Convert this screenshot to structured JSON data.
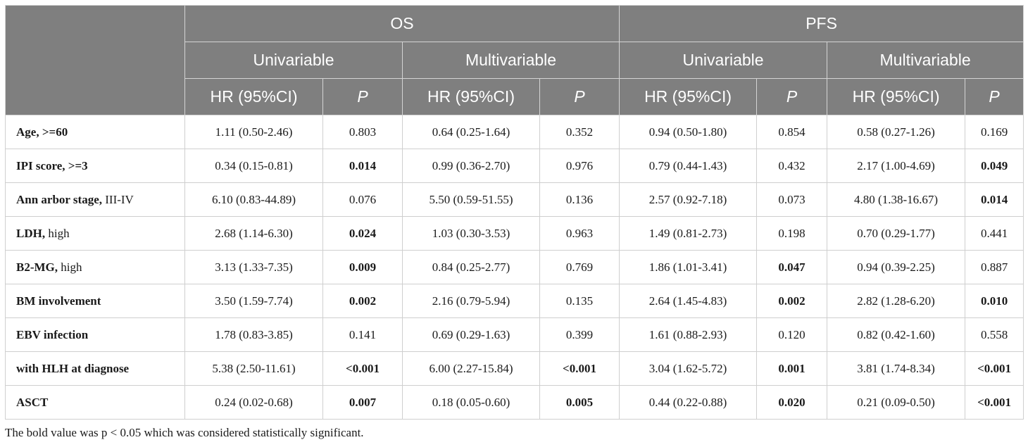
{
  "header": {
    "group_os": "OS",
    "group_pfs": "PFS",
    "univariable": "Univariable",
    "multivariable": "Multivariable",
    "hr_col": "HR (95%CI)",
    "p_col": "P"
  },
  "rows": [
    {
      "label_bold": "Age, >=60",
      "label_rest": "",
      "os_uni_hr": "1.11 (0.50-2.46)",
      "os_uni_p": "0.803",
      "os_multi_hr": "0.64 (0.25-1.64)",
      "os_multi_p": "0.352",
      "pfs_uni_hr": "0.94 (0.50-1.80)",
      "pfs_uni_p": "0.854",
      "pfs_multi_hr": "0.58 (0.27-1.26)",
      "pfs_multi_p": "0.169"
    },
    {
      "label_bold": "IPI score, >=3",
      "label_rest": "",
      "os_uni_hr": "0.34 (0.15-0.81)",
      "os_uni_p": "0.014",
      "os_multi_hr": "0.99 (0.36-2.70)",
      "os_multi_p": "0.976",
      "pfs_uni_hr": "0.79 (0.44-1.43)",
      "pfs_uni_p": "0.432",
      "pfs_multi_hr": "2.17 (1.00-4.69)",
      "pfs_multi_p": "0.049"
    },
    {
      "label_bold": "Ann arbor stage,",
      "label_rest": " III-IV",
      "os_uni_hr": "6.10 (0.83-44.89)",
      "os_uni_p": "0.076",
      "os_multi_hr": "5.50 (0.59-51.55)",
      "os_multi_p": "0.136",
      "pfs_uni_hr": "2.57 (0.92-7.18)",
      "pfs_uni_p": "0.073",
      "pfs_multi_hr": "4.80 (1.38-16.67)",
      "pfs_multi_p": "0.014"
    },
    {
      "label_bold": "LDH,",
      "label_rest": " high",
      "os_uni_hr": "2.68 (1.14-6.30)",
      "os_uni_p": "0.024",
      "os_multi_hr": "1.03 (0.30-3.53)",
      "os_multi_p": "0.963",
      "pfs_uni_hr": "1.49 (0.81-2.73)",
      "pfs_uni_p": "0.198",
      "pfs_multi_hr": "0.70 (0.29-1.77)",
      "pfs_multi_p": "0.441"
    },
    {
      "label_bold": "B2-MG,",
      "label_rest": " high",
      "os_uni_hr": "3.13 (1.33-7.35)",
      "os_uni_p": "0.009",
      "os_multi_hr": "0.84 (0.25-2.77)",
      "os_multi_p": "0.769",
      "pfs_uni_hr": "1.86 (1.01-3.41)",
      "pfs_uni_p": "0.047",
      "pfs_multi_hr": "0.94 (0.39-2.25)",
      "pfs_multi_p": "0.887"
    },
    {
      "label_bold": "BM involvement",
      "label_rest": "",
      "os_uni_hr": "3.50 (1.59-7.74)",
      "os_uni_p": "0.002",
      "os_multi_hr": "2.16 (0.79-5.94)",
      "os_multi_p": "0.135",
      "pfs_uni_hr": "2.64 (1.45-4.83)",
      "pfs_uni_p": "0.002",
      "pfs_multi_hr": "2.82 (1.28-6.20)",
      "pfs_multi_p": "0.010"
    },
    {
      "label_bold": "EBV infection",
      "label_rest": "",
      "os_uni_hr": "1.78 (0.83-3.85)",
      "os_uni_p": "0.141",
      "os_multi_hr": "0.69 (0.29-1.63)",
      "os_multi_p": "0.399",
      "pfs_uni_hr": "1.61 (0.88-2.93)",
      "pfs_uni_p": "0.120",
      "pfs_multi_hr": "0.82 (0.42-1.60)",
      "pfs_multi_p": "0.558"
    },
    {
      "label_bold": "with HLH at diagnose",
      "label_rest": "",
      "os_uni_hr": "5.38 (2.50-11.61)",
      "os_uni_p": "<0.001",
      "os_multi_hr": "6.00 (2.27-15.84)",
      "os_multi_p": "<0.001",
      "pfs_uni_hr": "3.04 (1.62-5.72)",
      "pfs_uni_p": "0.001",
      "pfs_multi_hr": "3.81 (1.74-8.34)",
      "pfs_multi_p": "<0.001"
    },
    {
      "label_bold": "ASCT",
      "label_rest": "",
      "os_uni_hr": "0.24 (0.02-0.68)",
      "os_uni_p": "0.007",
      "os_multi_hr": "0.18 (0.05-0.60)",
      "os_multi_p": "0.005",
      "pfs_uni_hr": "0.44 (0.22-0.88)",
      "pfs_uni_p": "0.020",
      "pfs_multi_hr": "0.21 (0.09-0.50)",
      "pfs_multi_p": "<0.001"
    }
  ],
  "bold_p_values": {
    "os_uni_p": [
      false,
      true,
      false,
      true,
      true,
      true,
      false,
      true,
      true
    ],
    "os_multi_p": [
      false,
      false,
      false,
      false,
      false,
      false,
      false,
      true,
      true
    ],
    "pfs_uni_p": [
      false,
      false,
      false,
      false,
      true,
      true,
      false,
      true,
      true
    ],
    "pfs_multi_p": [
      false,
      true,
      true,
      false,
      false,
      true,
      false,
      true,
      true
    ]
  },
  "footnote": "The bold value was p < 0.05 which was considered statistically significant.",
  "colors": {
    "header_bg": "#7f7f7f",
    "header_text": "#ffffff",
    "grid": "#cfcfcf"
  }
}
